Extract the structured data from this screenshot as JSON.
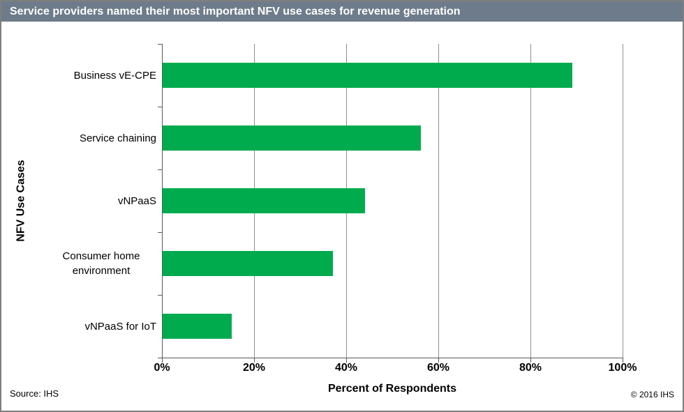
{
  "window": {
    "border_color": "#7f7f7f",
    "background": "#ffffff"
  },
  "header": {
    "title": "Service providers named their most important NFV use cases for revenue generation",
    "background": "#6e7b8a",
    "text_color": "#ffffff"
  },
  "footer": {
    "source": "Source: IHS",
    "copyright": "© 2016 IHS"
  },
  "chart_data": {
    "type": "bar",
    "orientation": "horizontal",
    "title": "Service providers named their most important NFV use cases for revenue generation",
    "categories": [
      "Business vE-CPE",
      "Service chaining",
      "vNPaaS",
      "Consumer home environment",
      "vNPaaS for IoT"
    ],
    "values": [
      89,
      56,
      44,
      37,
      15
    ],
    "unit": "%",
    "xlabel": "Percent of Respondents",
    "ylabel": "NFV Use Cases",
    "xlim": [
      0,
      100
    ],
    "xtick_values": [
      0,
      20,
      40,
      60,
      80,
      100
    ],
    "xtick_labels": [
      "0%",
      "20%",
      "40%",
      "60%",
      "80%",
      "100%"
    ],
    "grid": "vertical-only",
    "legend": "none",
    "bar_color": "#00ab4e",
    "gridline_color": "#909090",
    "axis_color": "#595959"
  }
}
